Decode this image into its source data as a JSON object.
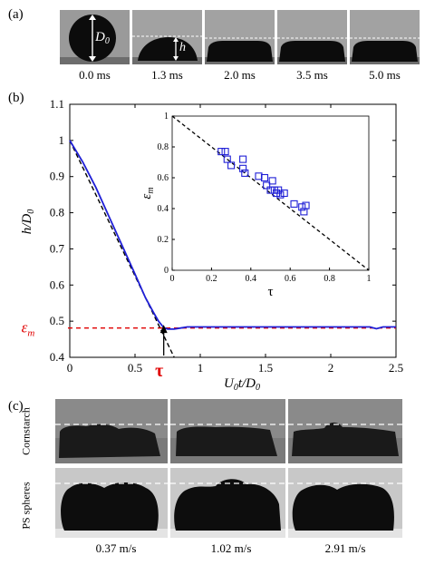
{
  "panel_a": {
    "label": "(a)",
    "frames": [
      {
        "time": "0.0 ms",
        "drop": "sphere",
        "annot": "D0"
      },
      {
        "time": "1.3 ms",
        "drop": "cap",
        "annot": "h"
      },
      {
        "time": "2.0 ms",
        "drop": "flat"
      },
      {
        "time": "3.5 ms",
        "drop": "flat"
      },
      {
        "time": "5.0 ms",
        "drop": "flat"
      }
    ],
    "d0_main": "D",
    "d0_sub": "0",
    "h_label": "h"
  },
  "panel_b": {
    "label": "(b)",
    "xlabel_main": "U",
    "xlabel_sub1": "0",
    "xlabel_mid": "t/D",
    "xlabel_sub2": "0",
    "ylabel_main": "h/D",
    "ylabel_sub": "0",
    "epsilon_label": "ε",
    "epsilon_sub": "m",
    "tau_label": "τ",
    "inset_xlabel": "τ",
    "inset_ylabel": "ε",
    "inset_ylabel_sub": "m",
    "colors": {
      "curve": "#1f1fd6",
      "epsilon": "#e00000",
      "tau": "#e00000",
      "markers": "#1f1fd6"
    }
  },
  "chart_data": [
    {
      "type": "line",
      "xlim": [
        0,
        2.5
      ],
      "ylim": [
        0.4,
        1.1
      ],
      "xticks": [
        "0",
        "0.5",
        "1",
        "1.5",
        "2",
        "2.5"
      ],
      "yticks": [
        "0.4",
        "0.5",
        "0.6",
        "0.7",
        "0.8",
        "0.9",
        "1",
        "1.1"
      ],
      "series": [
        {
          "values_xy": [
            [
              0,
              1.0
            ],
            [
              0.1,
              0.94
            ],
            [
              0.2,
              0.87
            ],
            [
              0.3,
              0.79
            ],
            [
              0.4,
              0.71
            ],
            [
              0.5,
              0.63
            ],
            [
              0.58,
              0.565
            ],
            [
              0.64,
              0.525
            ],
            [
              0.68,
              0.5
            ],
            [
              0.72,
              0.482
            ],
            [
              0.75,
              0.478
            ],
            [
              0.8,
              0.478
            ],
            [
              0.85,
              0.481
            ],
            [
              0.9,
              0.484
            ],
            [
              1.0,
              0.484
            ],
            [
              1.5,
              0.484
            ],
            [
              2.0,
              0.484
            ],
            [
              2.3,
              0.484
            ],
            [
              2.35,
              0.479
            ],
            [
              2.4,
              0.484
            ],
            [
              2.5,
              0.484
            ]
          ],
          "style": "solid"
        },
        {
          "values_xy": [
            [
              0,
              1.0
            ],
            [
              0.8,
              0.4
            ]
          ],
          "style": "dashed"
        },
        {
          "values_xy": [
            [
              0,
              0.481
            ],
            [
              2.5,
              0.481
            ]
          ],
          "style": "dashed-red"
        }
      ],
      "annotations": [
        {
          "text": "τ",
          "x": 0.72
        }
      ]
    },
    {
      "type": "scatter",
      "xlim": [
        0,
        1
      ],
      "ylim": [
        0,
        1
      ],
      "xticks": [
        "0",
        "0.2",
        "0.4",
        "0.6",
        "0.8",
        "1"
      ],
      "yticks": [
        "0",
        "0.2",
        "0.4",
        "0.6",
        "0.8",
        "1"
      ],
      "points": [
        [
          0.25,
          0.77
        ],
        [
          0.27,
          0.77
        ],
        [
          0.28,
          0.72
        ],
        [
          0.3,
          0.68
        ],
        [
          0.36,
          0.72
        ],
        [
          0.36,
          0.66
        ],
        [
          0.37,
          0.63
        ],
        [
          0.44,
          0.61
        ],
        [
          0.47,
          0.6
        ],
        [
          0.48,
          0.55
        ],
        [
          0.5,
          0.52
        ],
        [
          0.51,
          0.58
        ],
        [
          0.52,
          0.52
        ],
        [
          0.53,
          0.5
        ],
        [
          0.54,
          0.52
        ],
        [
          0.55,
          0.49
        ],
        [
          0.57,
          0.5
        ],
        [
          0.62,
          0.43
        ],
        [
          0.66,
          0.41
        ],
        [
          0.68,
          0.42
        ],
        [
          0.67,
          0.38
        ]
      ],
      "reference_line": [
        [
          0,
          1
        ],
        [
          1,
          0
        ]
      ]
    }
  ],
  "panel_c": {
    "label": "(c)",
    "row1_label": "Cornstarch",
    "row2_label": "PS spheres",
    "speeds": [
      "0.37 m/s",
      "1.02 m/s",
      "2.91 m/s"
    ]
  }
}
